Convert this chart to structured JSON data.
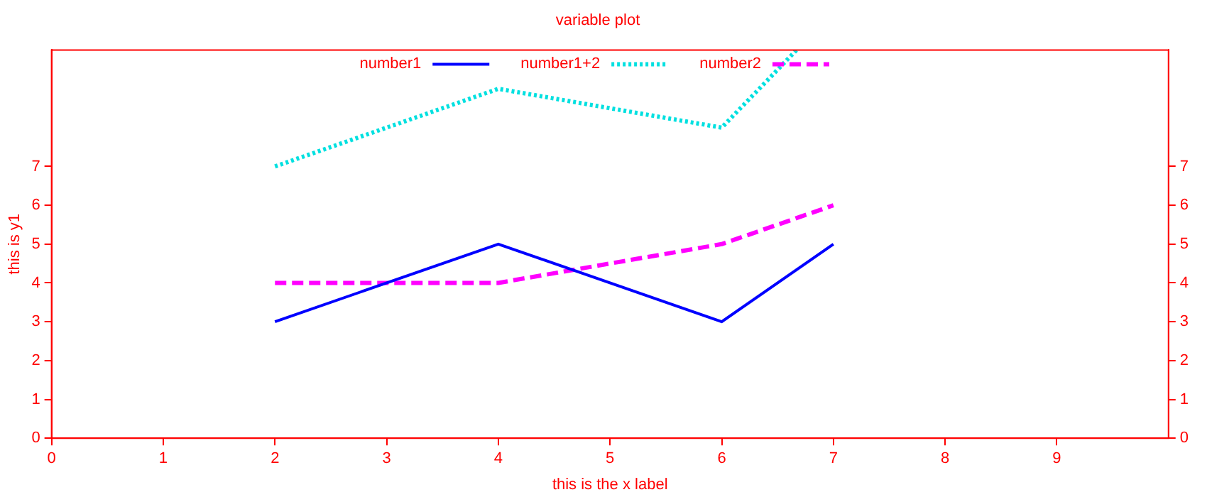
{
  "chart_data": {
    "type": "line",
    "title": "variable plot",
    "xlabel": "this is the x label",
    "ylabel": "this is y1",
    "x": [
      2,
      4,
      6,
      7
    ],
    "series": [
      {
        "name": "number1",
        "color": "#0000ff",
        "values": [
          3,
          5,
          3,
          5
        ],
        "line_style": "solid"
      },
      {
        "name": "number1+2",
        "color": "#00e0e0",
        "x": [
          2,
          4,
          6,
          6.67
        ],
        "values": [
          7,
          9,
          8,
          10
        ],
        "line_style": "dotted"
      },
      {
        "name": "number2",
        "color": "#ff00ff",
        "values": [
          4,
          4,
          5,
          6
        ],
        "line_style": "dashed"
      }
    ],
    "xlim": [
      0,
      10
    ],
    "xticks": [
      0,
      1,
      2,
      3,
      4,
      5,
      6,
      7,
      8,
      9
    ],
    "ylim": [
      0,
      10
    ],
    "yticks": [
      0,
      1,
      2,
      3,
      4,
      5,
      6,
      7
    ],
    "y2lim": [
      0,
      10
    ],
    "y2ticks": [
      0,
      1,
      2,
      3,
      4,
      5,
      6,
      7
    ],
    "grid": false,
    "legend": "top",
    "marker": "none"
  }
}
